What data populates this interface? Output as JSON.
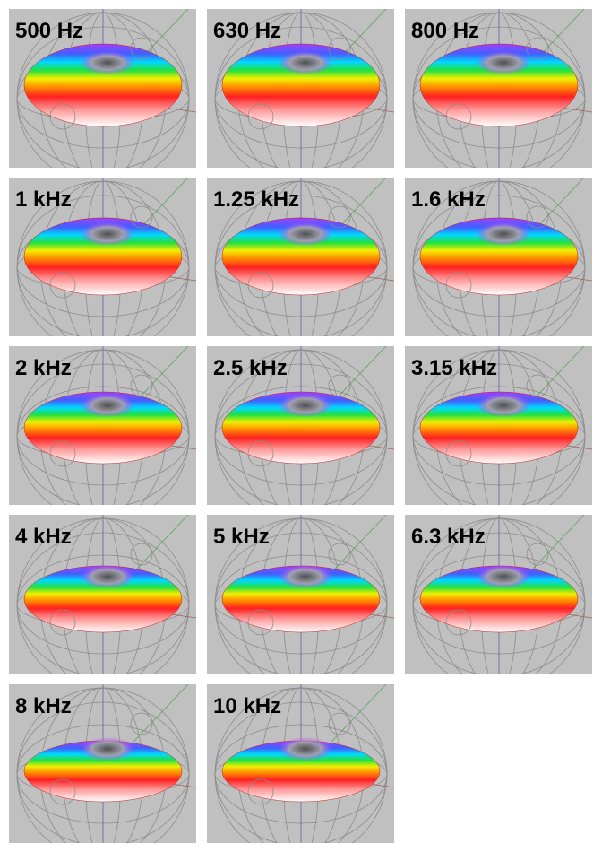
{
  "panels": [
    {
      "label": "500 Hz"
    },
    {
      "label": "630 Hz"
    },
    {
      "label": "800 Hz"
    },
    {
      "label": "1 kHz"
    },
    {
      "label": "1.25 kHz"
    },
    {
      "label": "1.6 kHz"
    },
    {
      "label": "2 kHz"
    },
    {
      "label": "2.5 kHz"
    },
    {
      "label": "3.15 kHz"
    },
    {
      "label": "4 kHz"
    },
    {
      "label": "5 kHz"
    },
    {
      "label": "6.3 kHz"
    },
    {
      "label": "8 kHz"
    },
    {
      "label": "10 kHz"
    }
  ]
}
